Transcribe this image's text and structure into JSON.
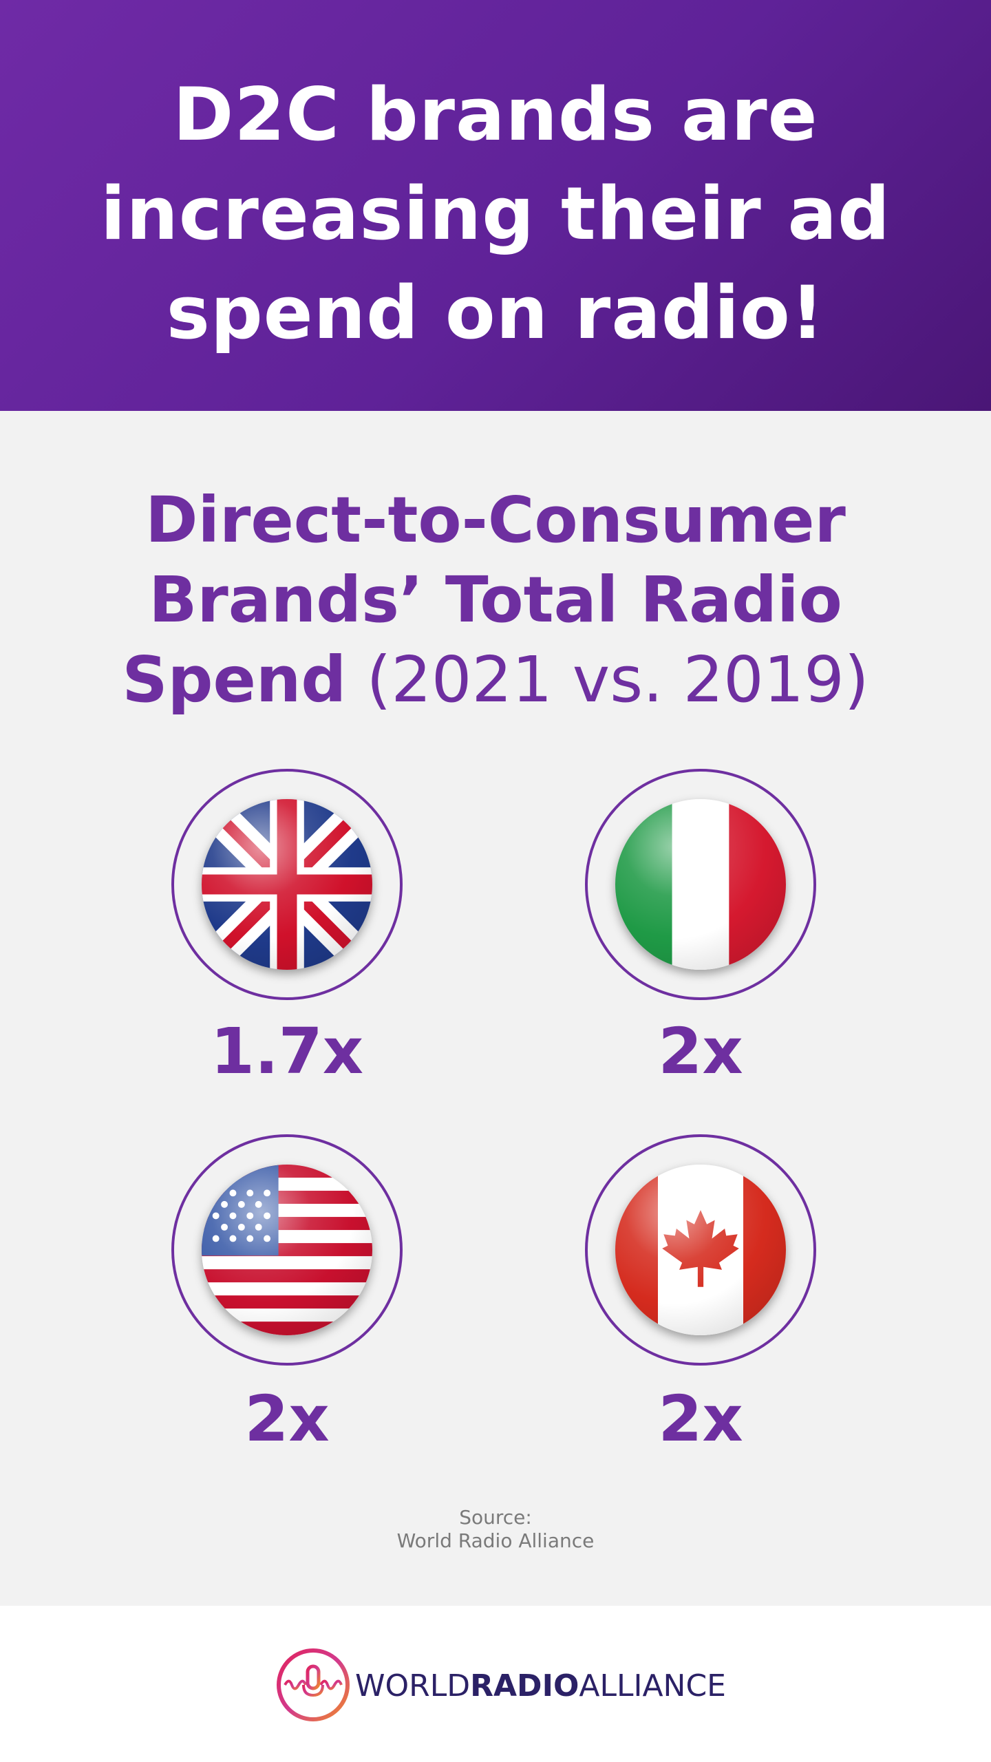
{
  "header": {
    "headline_line1": "D2C brands are",
    "headline_line2": "increasing their ad",
    "headline_line3": "spend on radio!"
  },
  "subtitle": {
    "line1": "Direct-to-Consumer",
    "line2": "Brands’ Total Radio",
    "line3_bold": "Spend",
    "line3_light": " (2021 vs. 2019)"
  },
  "countries": [
    {
      "flag": "uk-flag-icon",
      "value": "1.7x"
    },
    {
      "flag": "italy-flag-icon",
      "value": "2x"
    },
    {
      "flag": "usa-flag-icon",
      "value": "2x"
    },
    {
      "flag": "canada-flag-icon",
      "value": "2x"
    }
  ],
  "source": {
    "label": "Source:",
    "name": "World Radio Alliance"
  },
  "footer": {
    "logo_part1": "WORLD",
    "logo_part2": "RADIO",
    "logo_part3": "ALLIANCE"
  },
  "colors": {
    "header_purple": "#6f2aa6",
    "accent_purple": "#6e2fa0",
    "logo_navy": "#2b2166",
    "background": "#f2f2f2"
  }
}
